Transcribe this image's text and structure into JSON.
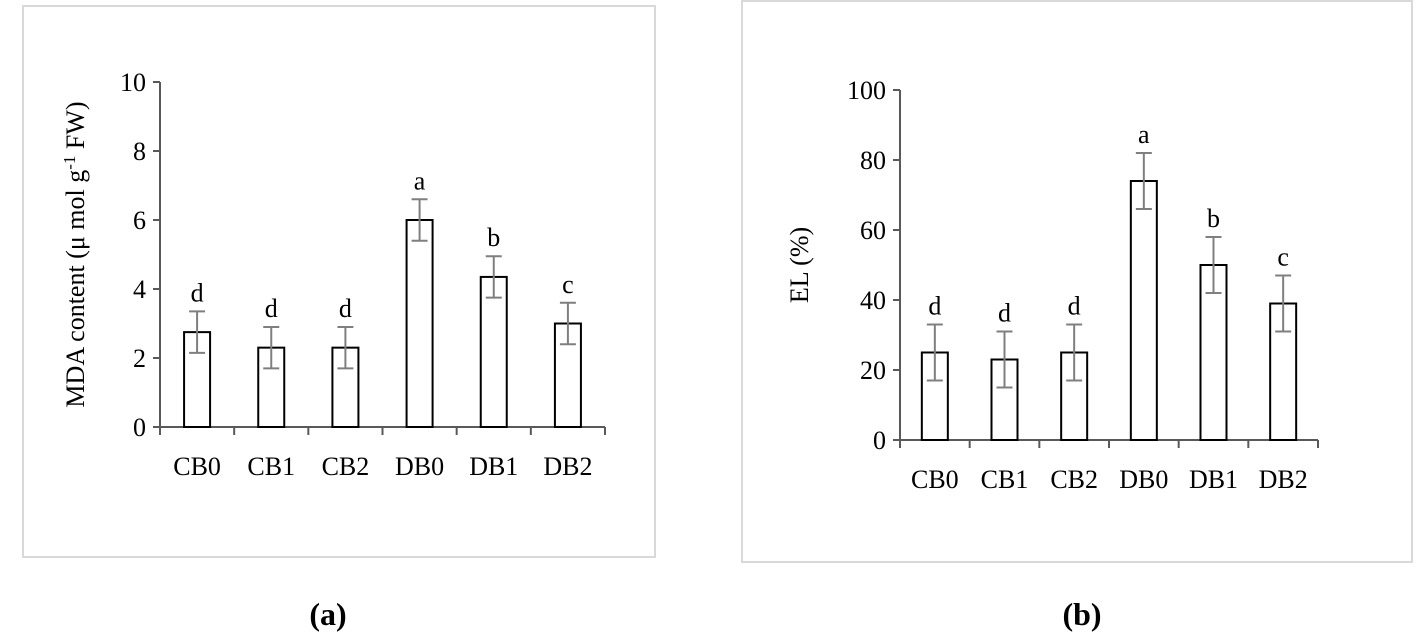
{
  "panels": {
    "a": "(a)",
    "b": "(b)"
  },
  "chart_data": [
    {
      "type": "bar",
      "title": "",
      "categories": [
        "CB0",
        "CB1",
        "CB2",
        "DB0",
        "DB1",
        "DB2"
      ],
      "values": [
        2.75,
        2.3,
        2.3,
        6.0,
        4.35,
        3.0
      ],
      "errors": [
        0.6,
        0.6,
        0.6,
        0.6,
        0.6,
        0.6
      ],
      "significance": [
        "d",
        "d",
        "d",
        "a",
        "b",
        "c"
      ],
      "ylabel": {
        "main": "MDA content (μ mol g",
        "sup": "-1",
        "tail": " FW)"
      },
      "xlabel": "",
      "ylim": [
        0,
        10
      ],
      "yticks": [
        0,
        2,
        4,
        6,
        8,
        10
      ],
      "grid": false,
      "bar_fill": "#ffffff",
      "bar_stroke": "#000000",
      "error_color": "#7f7f7f"
    },
    {
      "type": "bar",
      "title": "",
      "categories": [
        "CB0",
        "CB1",
        "CB2",
        "DB0",
        "DB1",
        "DB2"
      ],
      "values": [
        25,
        23,
        25,
        74,
        50,
        39
      ],
      "errors": [
        8,
        8,
        8,
        8,
        8,
        8
      ],
      "significance": [
        "d",
        "d",
        "d",
        "a",
        "b",
        "c"
      ],
      "ylabel": {
        "main": "EL (%)",
        "sup": "",
        "tail": ""
      },
      "xlabel": "",
      "ylim": [
        0,
        100
      ],
      "yticks": [
        0,
        20,
        40,
        60,
        80,
        100
      ],
      "grid": false,
      "bar_fill": "#ffffff",
      "bar_stroke": "#000000",
      "error_color": "#7f7f7f"
    }
  ]
}
